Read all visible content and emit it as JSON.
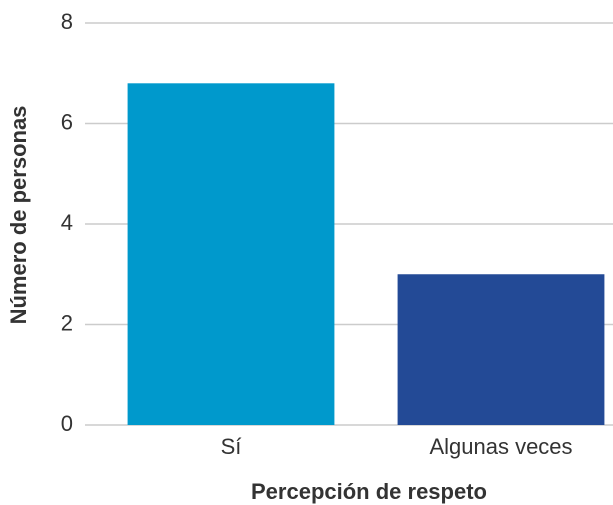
{
  "chart_data": {
    "type": "bar",
    "xlabel": "Percepción de respeto",
    "ylabel": "Número de personas",
    "categories": [
      "Sí",
      "Algunas veces"
    ],
    "values": [
      6.8,
      3
    ],
    "colors": [
      "#0099cc",
      "#234a96"
    ],
    "ylim": [
      0,
      8
    ],
    "yticks": [
      0,
      2,
      4,
      6,
      8
    ],
    "grid": true
  }
}
